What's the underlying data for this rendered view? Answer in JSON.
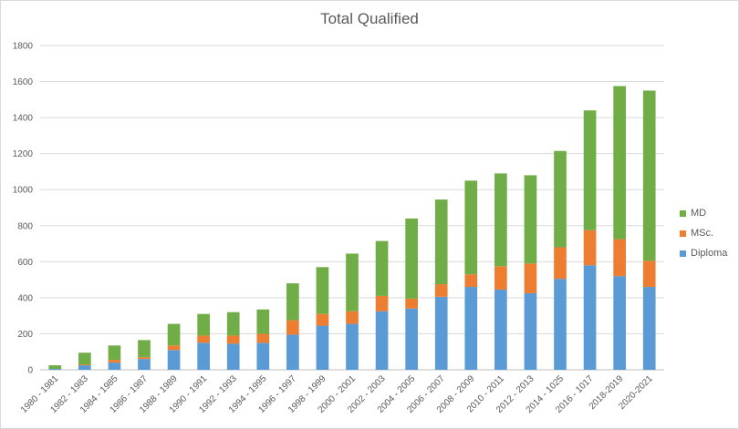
{
  "chart_data": {
    "type": "bar",
    "stacked": true,
    "title": "Total Qualified",
    "xlabel": "",
    "ylabel": "",
    "ylim": [
      0,
      1800
    ],
    "yticks": [
      0,
      200,
      400,
      600,
      800,
      1000,
      1200,
      1400,
      1600,
      1800
    ],
    "grid": true,
    "legend_position": "right",
    "categories": [
      "1980 - 1981",
      "1982 - 1983",
      "1984 - 1985",
      "1986 - 1987",
      "1988 - 1989",
      "1990 - 1991",
      "1992 - 1993",
      "1994 - 1995",
      "1996 - 1997",
      "1998 - 1999",
      "2000 - 2001",
      "2002 - 2003",
      "2004 - 2005",
      "2006 - 2007",
      "2008 - 2009",
      "2010 - 2011",
      "2012 - 2013",
      "2014 - 1025",
      "2016 - 1017",
      "2018-2019",
      "2020-2021"
    ],
    "series": [
      {
        "name": "Diploma",
        "color": "#5b9bd5",
        "values": [
          5,
          25,
          40,
          60,
          110,
          150,
          145,
          150,
          195,
          245,
          255,
          325,
          340,
          405,
          460,
          445,
          425,
          505,
          580,
          520,
          460
        ]
      },
      {
        "name": "MSc.",
        "color": "#ed7d31",
        "values": [
          0,
          5,
          15,
          10,
          25,
          40,
          45,
          50,
          80,
          65,
          70,
          85,
          55,
          70,
          70,
          130,
          165,
          175,
          195,
          205,
          145
        ]
      },
      {
        "name": "MD",
        "color": "#70ad47",
        "values": [
          20,
          65,
          80,
          95,
          120,
          120,
          130,
          135,
          205,
          260,
          320,
          305,
          445,
          470,
          520,
          515,
          490,
          535,
          665,
          850,
          945
        ]
      }
    ],
    "legend_order": [
      "MD",
      "MSc.",
      "Diploma"
    ]
  }
}
